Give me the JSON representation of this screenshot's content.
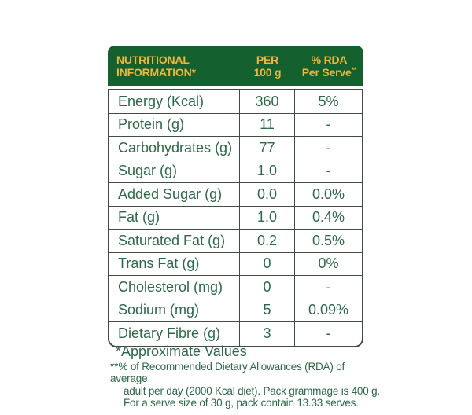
{
  "table": {
    "header": {
      "col1_line1": "NUTRITIONAL",
      "col1_line2": "INFORMATION*",
      "col2_line1": "PER",
      "col2_line2": "100 g",
      "col3_line1": "% RDA",
      "col3_line2": "Per Serve",
      "col3_sup": "**"
    },
    "rows": [
      {
        "label": "Energy (Kcal)",
        "value": "360",
        "rda": "5%"
      },
      {
        "label": "Protein (g)",
        "value": "11",
        "rda": "-"
      },
      {
        "label": "Carbohydrates (g)",
        "value": "77",
        "rda": "-"
      },
      {
        "label": "Sugar (g)",
        "value": "1.0",
        "rda": "-"
      },
      {
        "label": "Added Sugar (g)",
        "value": "0.0",
        "rda": "0.0%"
      },
      {
        "label": "Fat (g)",
        "value": "1.0",
        "rda": "0.4%"
      },
      {
        "label": "Saturated Fat (g)",
        "value": "0.2",
        "rda": "0.5%"
      },
      {
        "label": "Trans Fat (g)",
        "value": "0",
        "rda": "0%"
      },
      {
        "label": "Cholesterol (mg)",
        "value": "0",
        "rda": "-"
      },
      {
        "label": "Sodium (mg)",
        "value": "5",
        "rda": "0.09%"
      },
      {
        "label": "Dietary Fibre (g)",
        "value": "3",
        "rda": "-"
      }
    ]
  },
  "footnotes": {
    "approximate": "*Approximate Values",
    "rda_prefix": "**",
    "rda_lines": [
      "% of Recommended Dietary Allowances (RDA) of average",
      "adult per day (2000 Kcal diet). Pack grammage is 400 g.",
      "For a serve size of 30 g, pack contain 13.33 serves."
    ]
  },
  "colors": {
    "header_bg": "#15602f",
    "header_text": "#edb73c",
    "body_text": "#2e6848",
    "border": "#434c44"
  }
}
